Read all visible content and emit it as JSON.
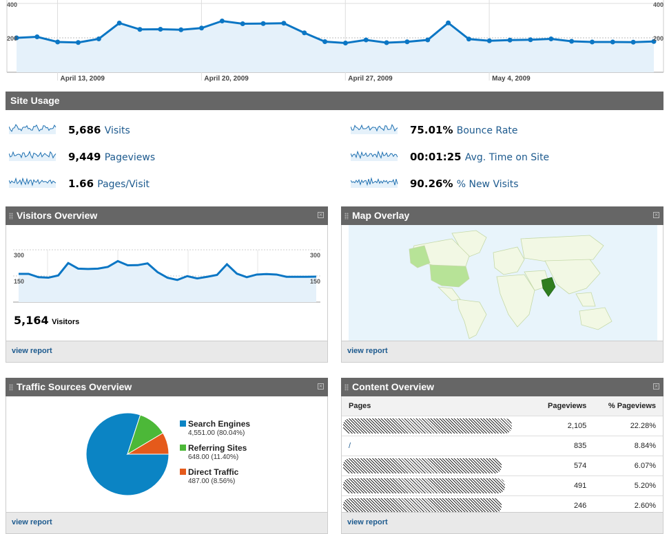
{
  "top_chart": {
    "y_left_top": "400",
    "y_left_mid": "200",
    "y_right_top": "400",
    "y_right_mid": "200",
    "x_labels": [
      "April 13, 2009",
      "April 20, 2009",
      "April 27, 2009",
      "May 4, 2009"
    ],
    "values": [
      200,
      206,
      176,
      173,
      194,
      286,
      249,
      250,
      247,
      257,
      298,
      282,
      283,
      285,
      229,
      178,
      170,
      188,
      172,
      177,
      188,
      287,
      193,
      183,
      187,
      189,
      194,
      180,
      176,
      176,
      175,
      179
    ],
    "y_max": 400,
    "color": "#0b76c4"
  },
  "site_usage": {
    "title": "Site Usage",
    "metrics_left": [
      {
        "value": "5,686",
        "label": "Visits"
      },
      {
        "value": "9,449",
        "label": "Pageviews"
      },
      {
        "value": "1.66",
        "label": "Pages/Visit"
      }
    ],
    "metrics_right": [
      {
        "value": "75.01%",
        "label": "Bounce Rate"
      },
      {
        "value": "00:01:25",
        "label": "Avg. Time on Site"
      },
      {
        "value": "90.26%",
        "label": "% New Visits"
      }
    ]
  },
  "visitors_overview": {
    "title": "Visitors Overview",
    "y_top": "300",
    "y_mid": "150",
    "y_right_top": "300",
    "y_right_mid": "150",
    "values": [
      162,
      162,
      143,
      140,
      153,
      224,
      192,
      190,
      192,
      202,
      235,
      211,
      212,
      222,
      172,
      140,
      127,
      149,
      136,
      145,
      156,
      217,
      163,
      143,
      158,
      161,
      158,
      145,
      145,
      145,
      146
    ],
    "y_max": 300,
    "total_value": "5,164",
    "total_label": "Visitors",
    "footer_link": "view report"
  },
  "map_overlay": {
    "title": "Map Overlay",
    "footer_link": "view report"
  },
  "traffic_sources": {
    "title": "Traffic Sources Overview",
    "items": [
      {
        "name": "Search Engines",
        "value": "4,551.00 (80.04%)",
        "color": "#0b84c4"
      },
      {
        "name": "Referring Sites",
        "value": "648.00 (11.40%)",
        "color": "#4cb838"
      },
      {
        "name": "Direct Traffic",
        "value": "487.00 (8.56%)",
        "color": "#e55a1b"
      }
    ],
    "chart_data": {
      "type": "pie",
      "labels": [
        "Search Engines",
        "Referring Sites",
        "Direct Traffic"
      ],
      "values": [
        4551,
        648,
        487
      ]
    },
    "footer_link": "view report"
  },
  "content_overview": {
    "title": "Content Overview",
    "columns": [
      "Pages",
      "Pageviews",
      "% Pageviews"
    ],
    "rows": [
      {
        "page": "",
        "pageviews": "2,105",
        "pct": "22.28%"
      },
      {
        "page": "/",
        "pageviews": "835",
        "pct": "8.84%"
      },
      {
        "page": "",
        "pageviews": "574",
        "pct": "6.07%"
      },
      {
        "page": "",
        "pageviews": "491",
        "pct": "5.20%"
      },
      {
        "page": "",
        "pageviews": "246",
        "pct": "2.60%"
      }
    ],
    "footer_link": "view report"
  }
}
